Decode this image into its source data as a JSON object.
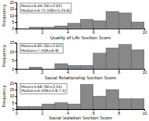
{
  "chart_data": [
    {
      "type": "histogram",
      "xlabel": "Quality of Life Section Score",
      "ylabel": "Frequency",
      "annotations": [
        "Mean=6.44 (SD=2.02)",
        "Median=6.75 (IQR=5.25-8)"
      ],
      "bins": [
        0,
        1,
        2,
        3,
        4,
        5,
        6,
        7,
        8,
        9,
        10
      ],
      "values": [
        0,
        1,
        1,
        2,
        4,
        7,
        6,
        13,
        12,
        5
      ],
      "color": "#888888",
      "xlim": [
        0,
        10
      ],
      "ylim": [
        0,
        20
      ],
      "xticks": [
        0,
        2,
        4,
        6,
        8,
        10
      ],
      "yticks": [
        0,
        5,
        10,
        15,
        20
      ]
    },
    {
      "type": "histogram",
      "xlabel": "Social Relationship Section Score",
      "ylabel": "Frequency",
      "annotations": [
        "Mean=6.85 (SD=2.02)",
        "Median=7 (IQR=6-8)"
      ],
      "bins": [
        0,
        1,
        2,
        3,
        4,
        5,
        6,
        7,
        8,
        9,
        10
      ],
      "values": [
        0,
        1,
        0,
        3,
        2,
        2,
        9,
        12,
        14,
        11
      ],
      "color": "#888888",
      "xlim": [
        0,
        10
      ],
      "ylim": [
        0,
        15
      ],
      "xticks": [
        0,
        2,
        4,
        6,
        8,
        10
      ],
      "yticks": [
        0,
        5,
        10,
        15
      ]
    },
    {
      "type": "histogram",
      "xlabel": "Social Isolation Section Score",
      "ylabel": "Frequency",
      "annotations": [
        "Mean=5.68 (SD=2.55)",
        "Median=6 (IQR=3.8-7.5)"
      ],
      "bins": [
        0,
        1,
        2,
        3,
        4,
        5,
        6,
        7,
        8,
        9,
        10
      ],
      "values": [
        2,
        2,
        4,
        5,
        4,
        19,
        10,
        15,
        8,
        8
      ],
      "color": "#888888",
      "xlim": [
        0,
        10
      ],
      "ylim": [
        0,
        20
      ],
      "xticks": [
        0,
        2,
        4,
        6,
        8,
        10
      ],
      "yticks": [
        0,
        5,
        10,
        15,
        20
      ]
    }
  ]
}
